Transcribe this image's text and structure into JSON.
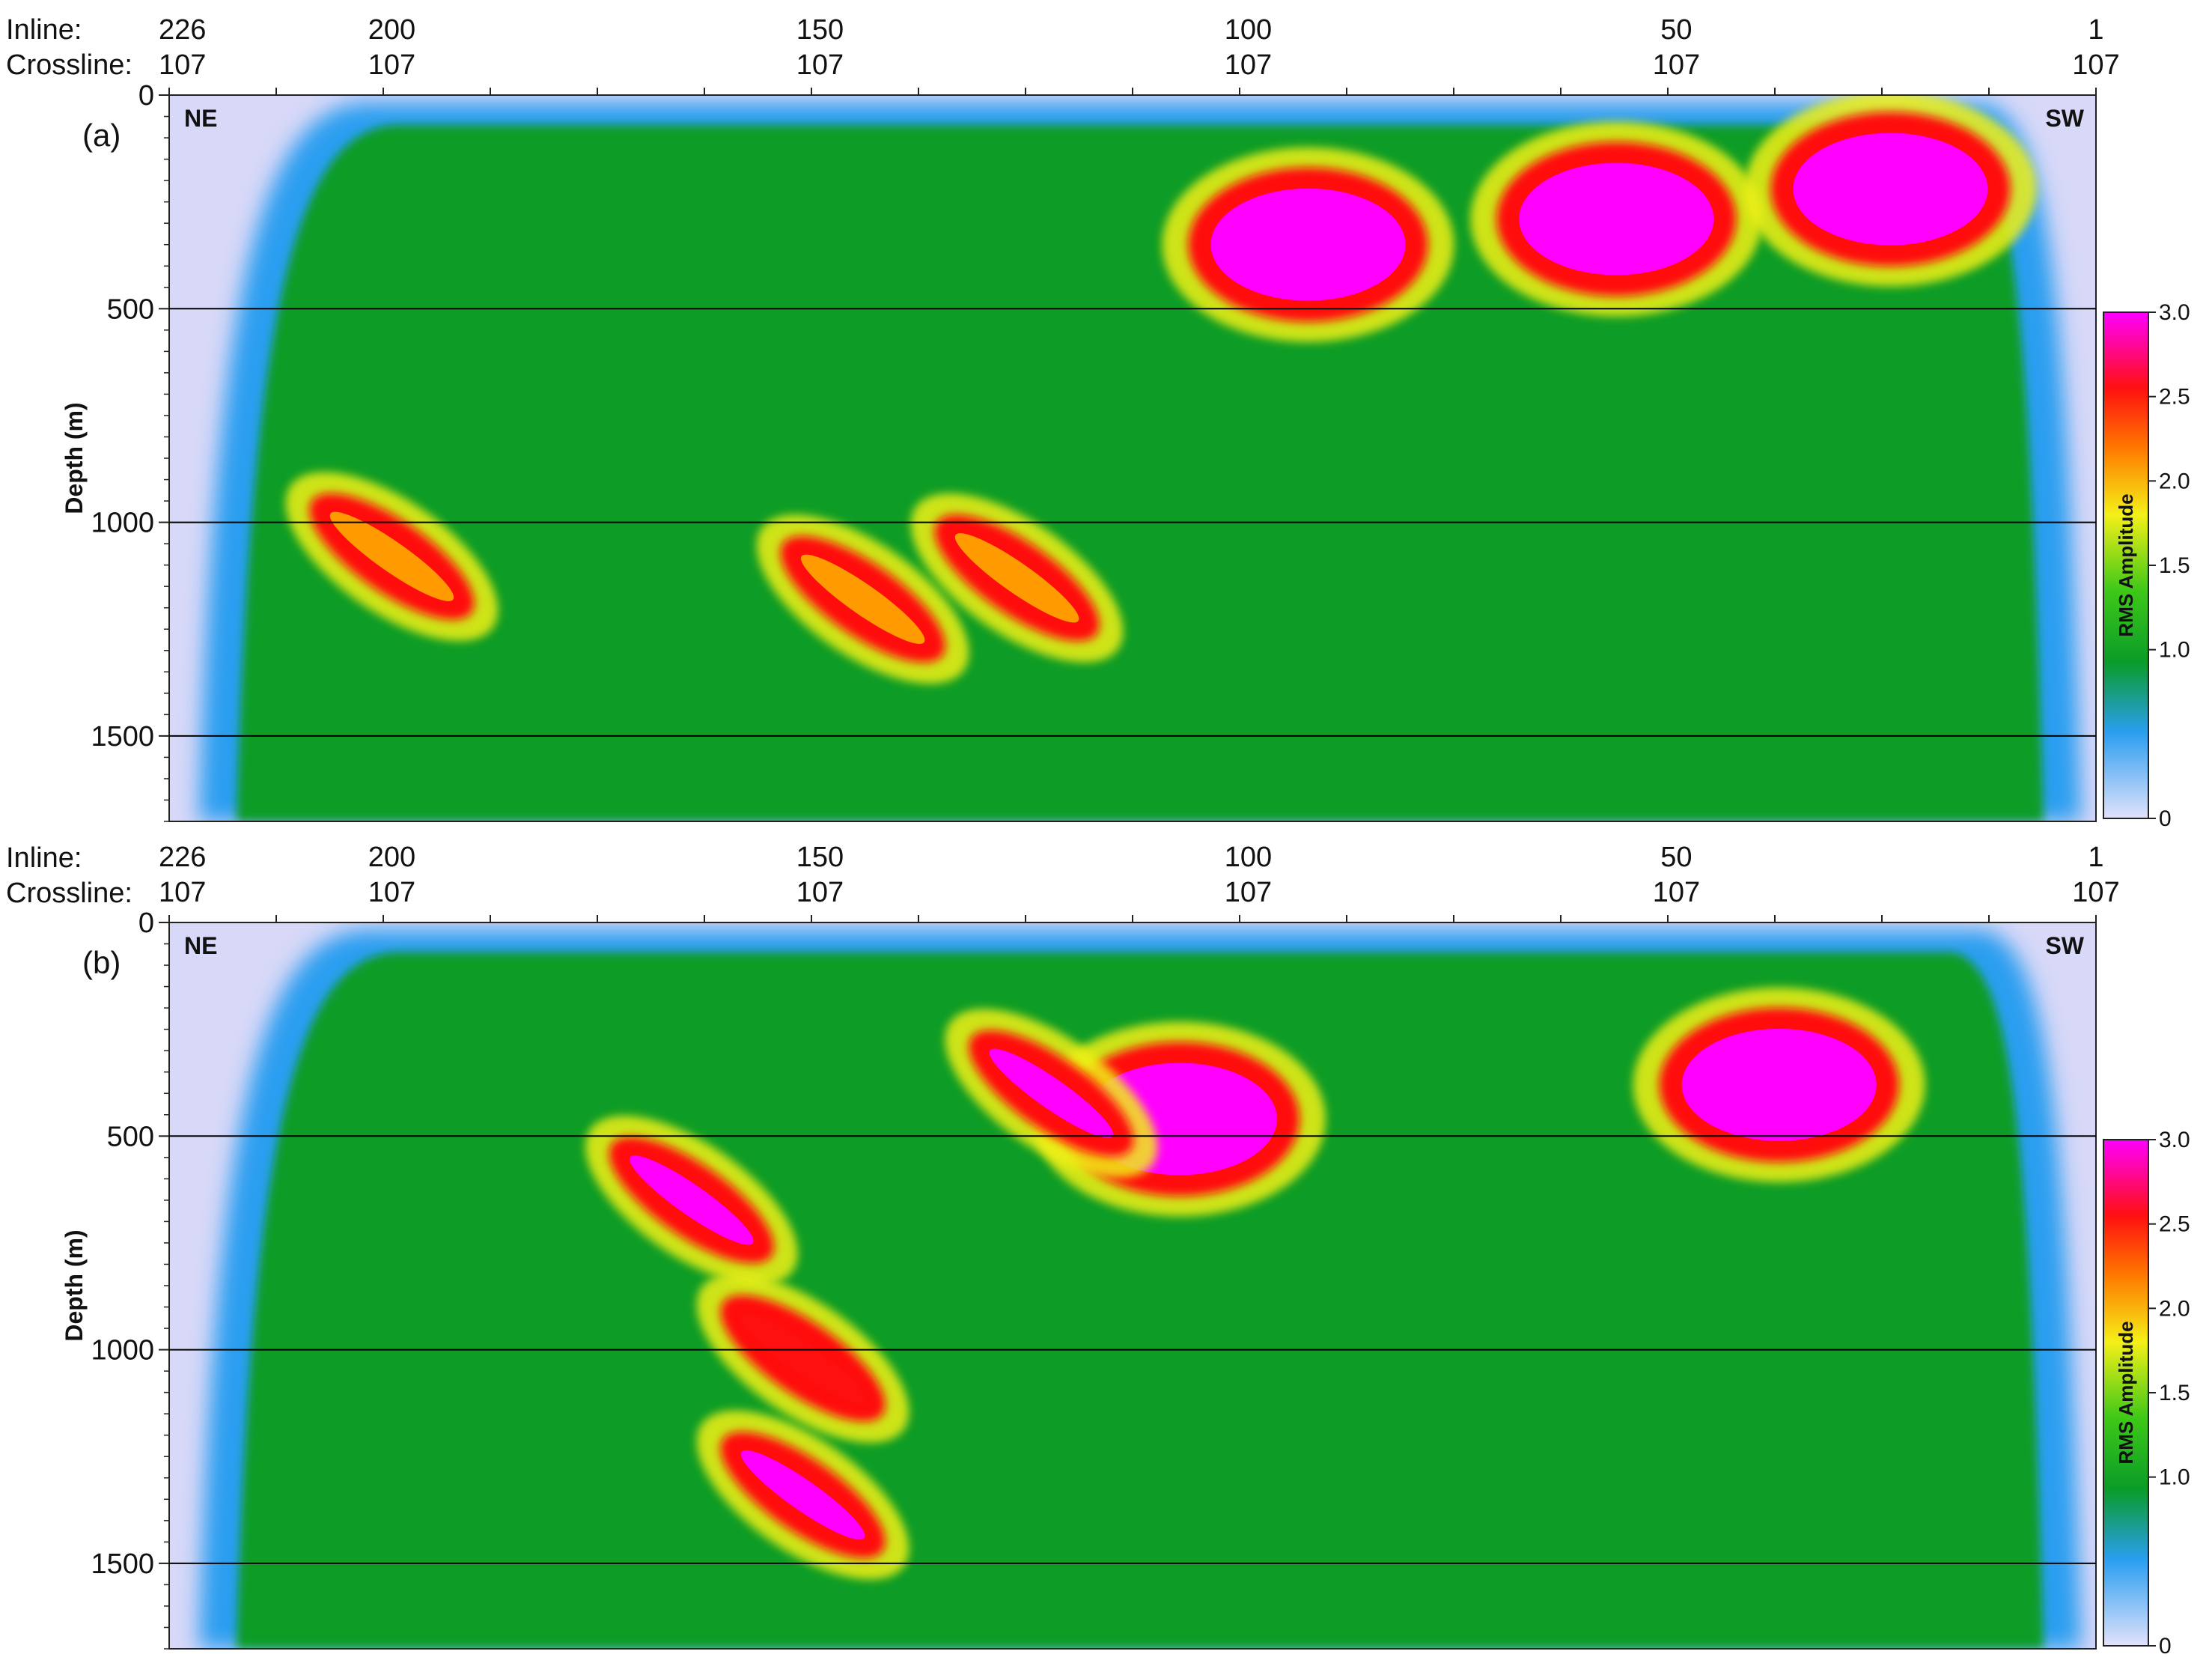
{
  "chart_data": [
    {
      "type": "heatmap",
      "panel_label": "(a)",
      "panel_letter": "a",
      "left_direction": "NE",
      "right_direction": "SW",
      "inline_axis_label": "Inline:",
      "crossline_axis_label": "Crossline:",
      "inline_ticks": [
        226,
        200,
        150,
        100,
        50,
        1
      ],
      "crossline_ticks": [
        107,
        107,
        107,
        107,
        107,
        107
      ],
      "ylabel": "Depth (m)",
      "y_ticks": [
        0,
        500,
        1000,
        1500
      ],
      "ylim": [
        0,
        1700
      ],
      "xlim": [
        226,
        1
      ],
      "gridlines_at_depth": [
        500,
        1000,
        1500
      ],
      "colorbar": {
        "title": "RMS Amplitude",
        "ticks": [
          "0",
          "1.0",
          "1.5",
          "2.0",
          "2.5",
          "3.0"
        ],
        "range": [
          0,
          3.0
        ]
      },
      "colormap": [
        "#d8d8f8",
        "#2a9ef0",
        "#0a9c28",
        "#2fc416",
        "#f0f018",
        "#ff9a00",
        "#ff1010",
        "#ff00ff"
      ],
      "anomalies": [
        {
          "inline": 93,
          "depth": 350,
          "level": 3.0,
          "description": "high-amplitude zone"
        },
        {
          "inline": 57,
          "depth": 290,
          "level": 3.0,
          "description": "high-amplitude zone"
        },
        {
          "inline": 25,
          "depth": 220,
          "level": 3.0,
          "description": "high-amplitude zone"
        },
        {
          "inline": 127,
          "depth": 1130,
          "level": 2.3,
          "description": "dipping band"
        },
        {
          "inline": 145,
          "depth": 1180,
          "level": 2.1,
          "description": "dipping band"
        },
        {
          "inline": 200,
          "depth": 1080,
          "level": 2.0,
          "description": "dipping band"
        }
      ]
    },
    {
      "type": "heatmap",
      "panel_label": "(b)",
      "panel_letter": "b",
      "left_direction": "NE",
      "right_direction": "SW",
      "inline_axis_label": "Inline:",
      "crossline_axis_label": "Crossline:",
      "inline_ticks": [
        226,
        200,
        150,
        100,
        50,
        1
      ],
      "crossline_ticks": [
        107,
        107,
        107,
        107,
        107,
        107
      ],
      "ylabel": "Depth (m)",
      "y_ticks": [
        0,
        500,
        1000,
        1500
      ],
      "ylim": [
        0,
        1700
      ],
      "xlim": [
        226,
        1
      ],
      "gridlines_at_depth": [
        500,
        1000,
        1500
      ],
      "colorbar": {
        "title": "RMS Amplitude",
        "ticks": [
          "0",
          "1.0",
          "1.5",
          "2.0",
          "2.5",
          "3.0"
        ],
        "range": [
          0,
          3.0
        ]
      },
      "colormap": [
        "#d8d8f8",
        "#2a9ef0",
        "#0a9c28",
        "#2fc416",
        "#f0f018",
        "#ff9a00",
        "#ff1010",
        "#ff00ff"
      ],
      "anomalies": [
        {
          "inline": 38,
          "depth": 380,
          "level": 3.0,
          "description": "high-amplitude zone"
        },
        {
          "inline": 108,
          "depth": 460,
          "level": 3.0,
          "description": "high-amplitude zone"
        },
        {
          "inline": 165,
          "depth": 650,
          "level": 2.8,
          "description": "dipping band"
        },
        {
          "inline": 152,
          "depth": 1020,
          "level": 2.4,
          "description": "dipping band"
        },
        {
          "inline": 152,
          "depth": 1340,
          "level": 2.8,
          "description": "dipping band"
        },
        {
          "inline": 123,
          "depth": 400,
          "level": 2.8,
          "description": "high-amplitude zone"
        }
      ]
    }
  ]
}
